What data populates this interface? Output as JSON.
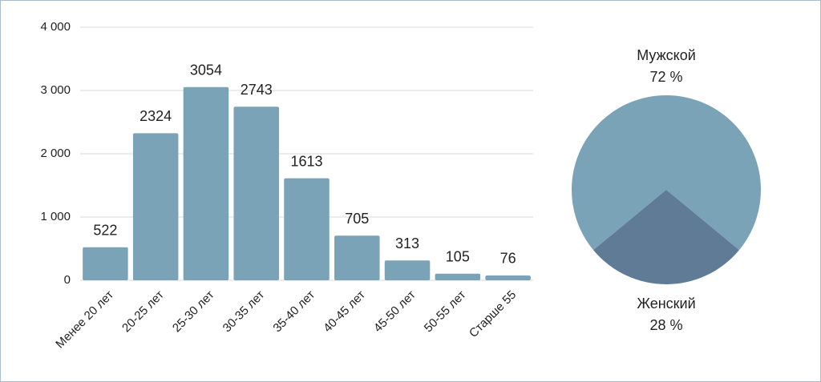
{
  "chart_data": [
    {
      "type": "bar",
      "categories": [
        "Менее 20 лет",
        "20-25 лет",
        "25-30 лет",
        "30-35 лет",
        "35-40 лет",
        "40-45 лет",
        "45-50 лет",
        "50-55 лет",
        "Старше 55"
      ],
      "values": [
        522,
        2324,
        3054,
        2743,
        1613,
        705,
        313,
        105,
        76
      ],
      "color": "#7aa3b7",
      "ylim": [
        0,
        4000
      ],
      "yticks": [
        0,
        {
          "value": 1000,
          "label": "1 000"
        },
        {
          "value": 2000,
          "label": "2 000"
        },
        {
          "value": 3000,
          "label": "3 000"
        },
        {
          "value": 4000,
          "label": "4 000"
        }
      ],
      "grid": true
    },
    {
      "type": "pie",
      "categories": [
        "Мужской",
        "Женский"
      ],
      "values": [
        72,
        28
      ],
      "value_labels": [
        "72 %",
        "28 %"
      ],
      "colors": [
        "#7aa3b7",
        "#5f7b96"
      ]
    }
  ]
}
